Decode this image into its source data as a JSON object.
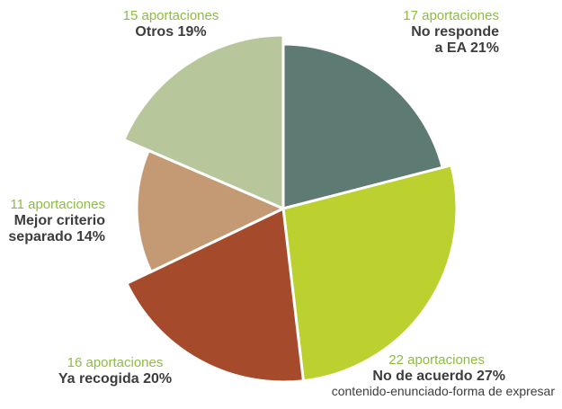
{
  "chart_data": {
    "type": "pie",
    "slices": [
      {
        "count_label": "17 aportaciones",
        "label": "No responde a EA",
        "name_line1": "No responde",
        "name_line2": "a EA 21%",
        "percent": 21,
        "count": 17,
        "color": "#5e7b73"
      },
      {
        "count_label": "22 aportaciones",
        "label": "No de acuerdo",
        "name_line1": "No de acuerdo 27%",
        "sub": "contenido-enunciado-forma de expresar",
        "percent": 27,
        "count": 22,
        "color": "#bcd030"
      },
      {
        "count_label": "16 aportaciones",
        "label": "Ya recogida",
        "name_line1": "Ya recogida 20%",
        "percent": 20,
        "count": 16,
        "color": "#a54b2c"
      },
      {
        "count_label": "11 aportaciones",
        "label": "Mejor criterio separado",
        "name_line1": "Mejor criterio",
        "name_line2": "separado 14%",
        "percent": 14,
        "count": 11,
        "color": "#c39a73"
      },
      {
        "count_label": "15 aportaciones",
        "label": "Otros",
        "name_line1": "Otros 19%",
        "percent": 19,
        "count": 15,
        "color": "#b7c79b"
      }
    ],
    "count_color": "#8cbd3f",
    "name_color": "#3d3d3d",
    "legend": "none"
  }
}
